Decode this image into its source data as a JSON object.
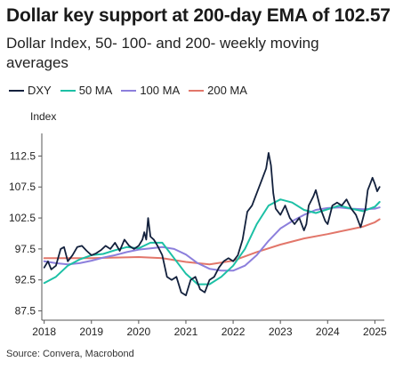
{
  "title": "Dollar key support at 200-day EMA of 102.57",
  "subtitle": "Dollar Index, 50- 100- and 200- weekly moving averages",
  "source": "Source: Convera, Macrobond",
  "chart_data": {
    "type": "line",
    "ylabel": "Index",
    "xlabel": "",
    "ylim": [
      86,
      115
    ],
    "xlim": [
      2017.95,
      2025.2
    ],
    "yticks": [
      87.5,
      92.5,
      97.5,
      102.5,
      107.5,
      112.5
    ],
    "ytick_labels": [
      "87.5",
      "92.5",
      "97.5",
      "102.5",
      "107.5",
      "112.5"
    ],
    "xticks": [
      2018,
      2019,
      2020,
      2021,
      2022,
      2023,
      2024,
      2025
    ],
    "xtick_labels": [
      "2018",
      "2019",
      "2020",
      "2021",
      "2022",
      "2023",
      "2024",
      "2025"
    ],
    "grid": false,
    "legend_position": "top",
    "series": [
      {
        "name": "DXY",
        "color": "#13213d",
        "x": [
          2018.0,
          2018.08,
          2018.15,
          2018.25,
          2018.35,
          2018.42,
          2018.5,
          2018.6,
          2018.7,
          2018.8,
          2018.9,
          2019.0,
          2019.1,
          2019.2,
          2019.3,
          2019.4,
          2019.5,
          2019.6,
          2019.7,
          2019.8,
          2019.9,
          2020.0,
          2020.08,
          2020.12,
          2020.16,
          2020.2,
          2020.25,
          2020.32,
          2020.4,
          2020.5,
          2020.6,
          2020.7,
          2020.8,
          2020.9,
          2021.0,
          2021.1,
          2021.2,
          2021.3,
          2021.4,
          2021.5,
          2021.6,
          2021.7,
          2021.8,
          2021.9,
          2022.0,
          2022.1,
          2022.2,
          2022.3,
          2022.4,
          2022.5,
          2022.6,
          2022.7,
          2022.75,
          2022.8,
          2022.85,
          2022.9,
          2023.0,
          2023.1,
          2023.2,
          2023.3,
          2023.4,
          2023.5,
          2023.55,
          2023.6,
          2023.7,
          2023.75,
          2023.85,
          2023.95,
          2024.0,
          2024.1,
          2024.2,
          2024.3,
          2024.4,
          2024.5,
          2024.6,
          2024.7,
          2024.8,
          2024.85,
          2024.9,
          2024.95,
          2025.0,
          2025.05,
          2025.1
        ],
        "values": [
          94.5,
          95.5,
          94.2,
          94.8,
          97.5,
          97.8,
          95.5,
          96.5,
          97.8,
          98.0,
          97.2,
          96.5,
          96.8,
          97.3,
          98.0,
          97.5,
          98.5,
          97.2,
          99.0,
          98.0,
          97.5,
          98.0,
          99.0,
          100.2,
          99.0,
          102.5,
          99.5,
          99.0,
          98.0,
          96.5,
          93.0,
          92.5,
          93.0,
          90.5,
          90.0,
          92.5,
          93.0,
          91.0,
          90.5,
          92.5,
          93.0,
          94.5,
          95.5,
          96.0,
          95.5,
          96.5,
          99.0,
          103.5,
          104.5,
          106.5,
          108.5,
          110.5,
          113.0,
          111.0,
          106.5,
          104.0,
          103.0,
          104.5,
          102.5,
          101.5,
          102.5,
          100.5,
          101.5,
          104.5,
          106.0,
          107.0,
          104.0,
          102.0,
          101.5,
          104.5,
          105.0,
          104.5,
          105.5,
          104.0,
          103.0,
          101.0,
          104.0,
          107.0,
          108.0,
          109.0,
          108.0,
          106.8,
          107.5
        ]
      },
      {
        "name": "50 MA",
        "color": "#1cc0a5",
        "x": [
          2018.0,
          2018.25,
          2018.5,
          2018.75,
          2019.0,
          2019.25,
          2019.5,
          2019.75,
          2020.0,
          2020.25,
          2020.5,
          2020.75,
          2021.0,
          2021.25,
          2021.5,
          2021.75,
          2022.0,
          2022.25,
          2022.5,
          2022.75,
          2023.0,
          2023.25,
          2023.5,
          2023.75,
          2024.0,
          2024.25,
          2024.5,
          2024.75,
          2025.0,
          2025.1
        ],
        "values": [
          92.0,
          93.0,
          94.8,
          95.8,
          96.5,
          96.7,
          97.3,
          97.8,
          97.6,
          98.5,
          98.5,
          96.0,
          93.5,
          91.8,
          91.8,
          93.0,
          94.8,
          97.5,
          101.5,
          104.5,
          105.5,
          105.0,
          103.8,
          103.3,
          103.9,
          104.5,
          104.0,
          103.6,
          104.3,
          105.1
        ]
      },
      {
        "name": "100 MA",
        "color": "#8c7fdc",
        "x": [
          2018.0,
          2018.25,
          2018.5,
          2018.75,
          2019.0,
          2019.25,
          2019.5,
          2019.75,
          2020.0,
          2020.25,
          2020.5,
          2020.75,
          2021.0,
          2021.25,
          2021.5,
          2021.75,
          2022.0,
          2022.25,
          2022.5,
          2022.75,
          2023.0,
          2023.25,
          2023.5,
          2023.75,
          2024.0,
          2024.25,
          2024.5,
          2024.75,
          2025.0,
          2025.1
        ],
        "values": [
          95.5,
          95.2,
          95.0,
          95.2,
          95.6,
          96.1,
          96.5,
          97.0,
          97.4,
          97.6,
          97.8,
          97.5,
          96.6,
          95.2,
          94.3,
          94.0,
          94.0,
          94.8,
          96.5,
          98.8,
          100.8,
          102.0,
          103.0,
          103.8,
          104.1,
          104.2,
          104.0,
          103.9,
          104.0,
          104.2
        ]
      },
      {
        "name": "200 MA",
        "color": "#e2766a",
        "x": [
          2018.0,
          2018.5,
          2019.0,
          2019.5,
          2020.0,
          2020.5,
          2021.0,
          2021.5,
          2022.0,
          2022.5,
          2023.0,
          2023.5,
          2024.0,
          2024.5,
          2024.75,
          2025.0,
          2025.1
        ],
        "values": [
          96.0,
          96.0,
          96.0,
          96.1,
          96.2,
          96.0,
          95.4,
          95.0,
          95.6,
          97.0,
          98.2,
          99.2,
          99.9,
          100.7,
          101.1,
          101.8,
          102.3
        ]
      }
    ]
  }
}
